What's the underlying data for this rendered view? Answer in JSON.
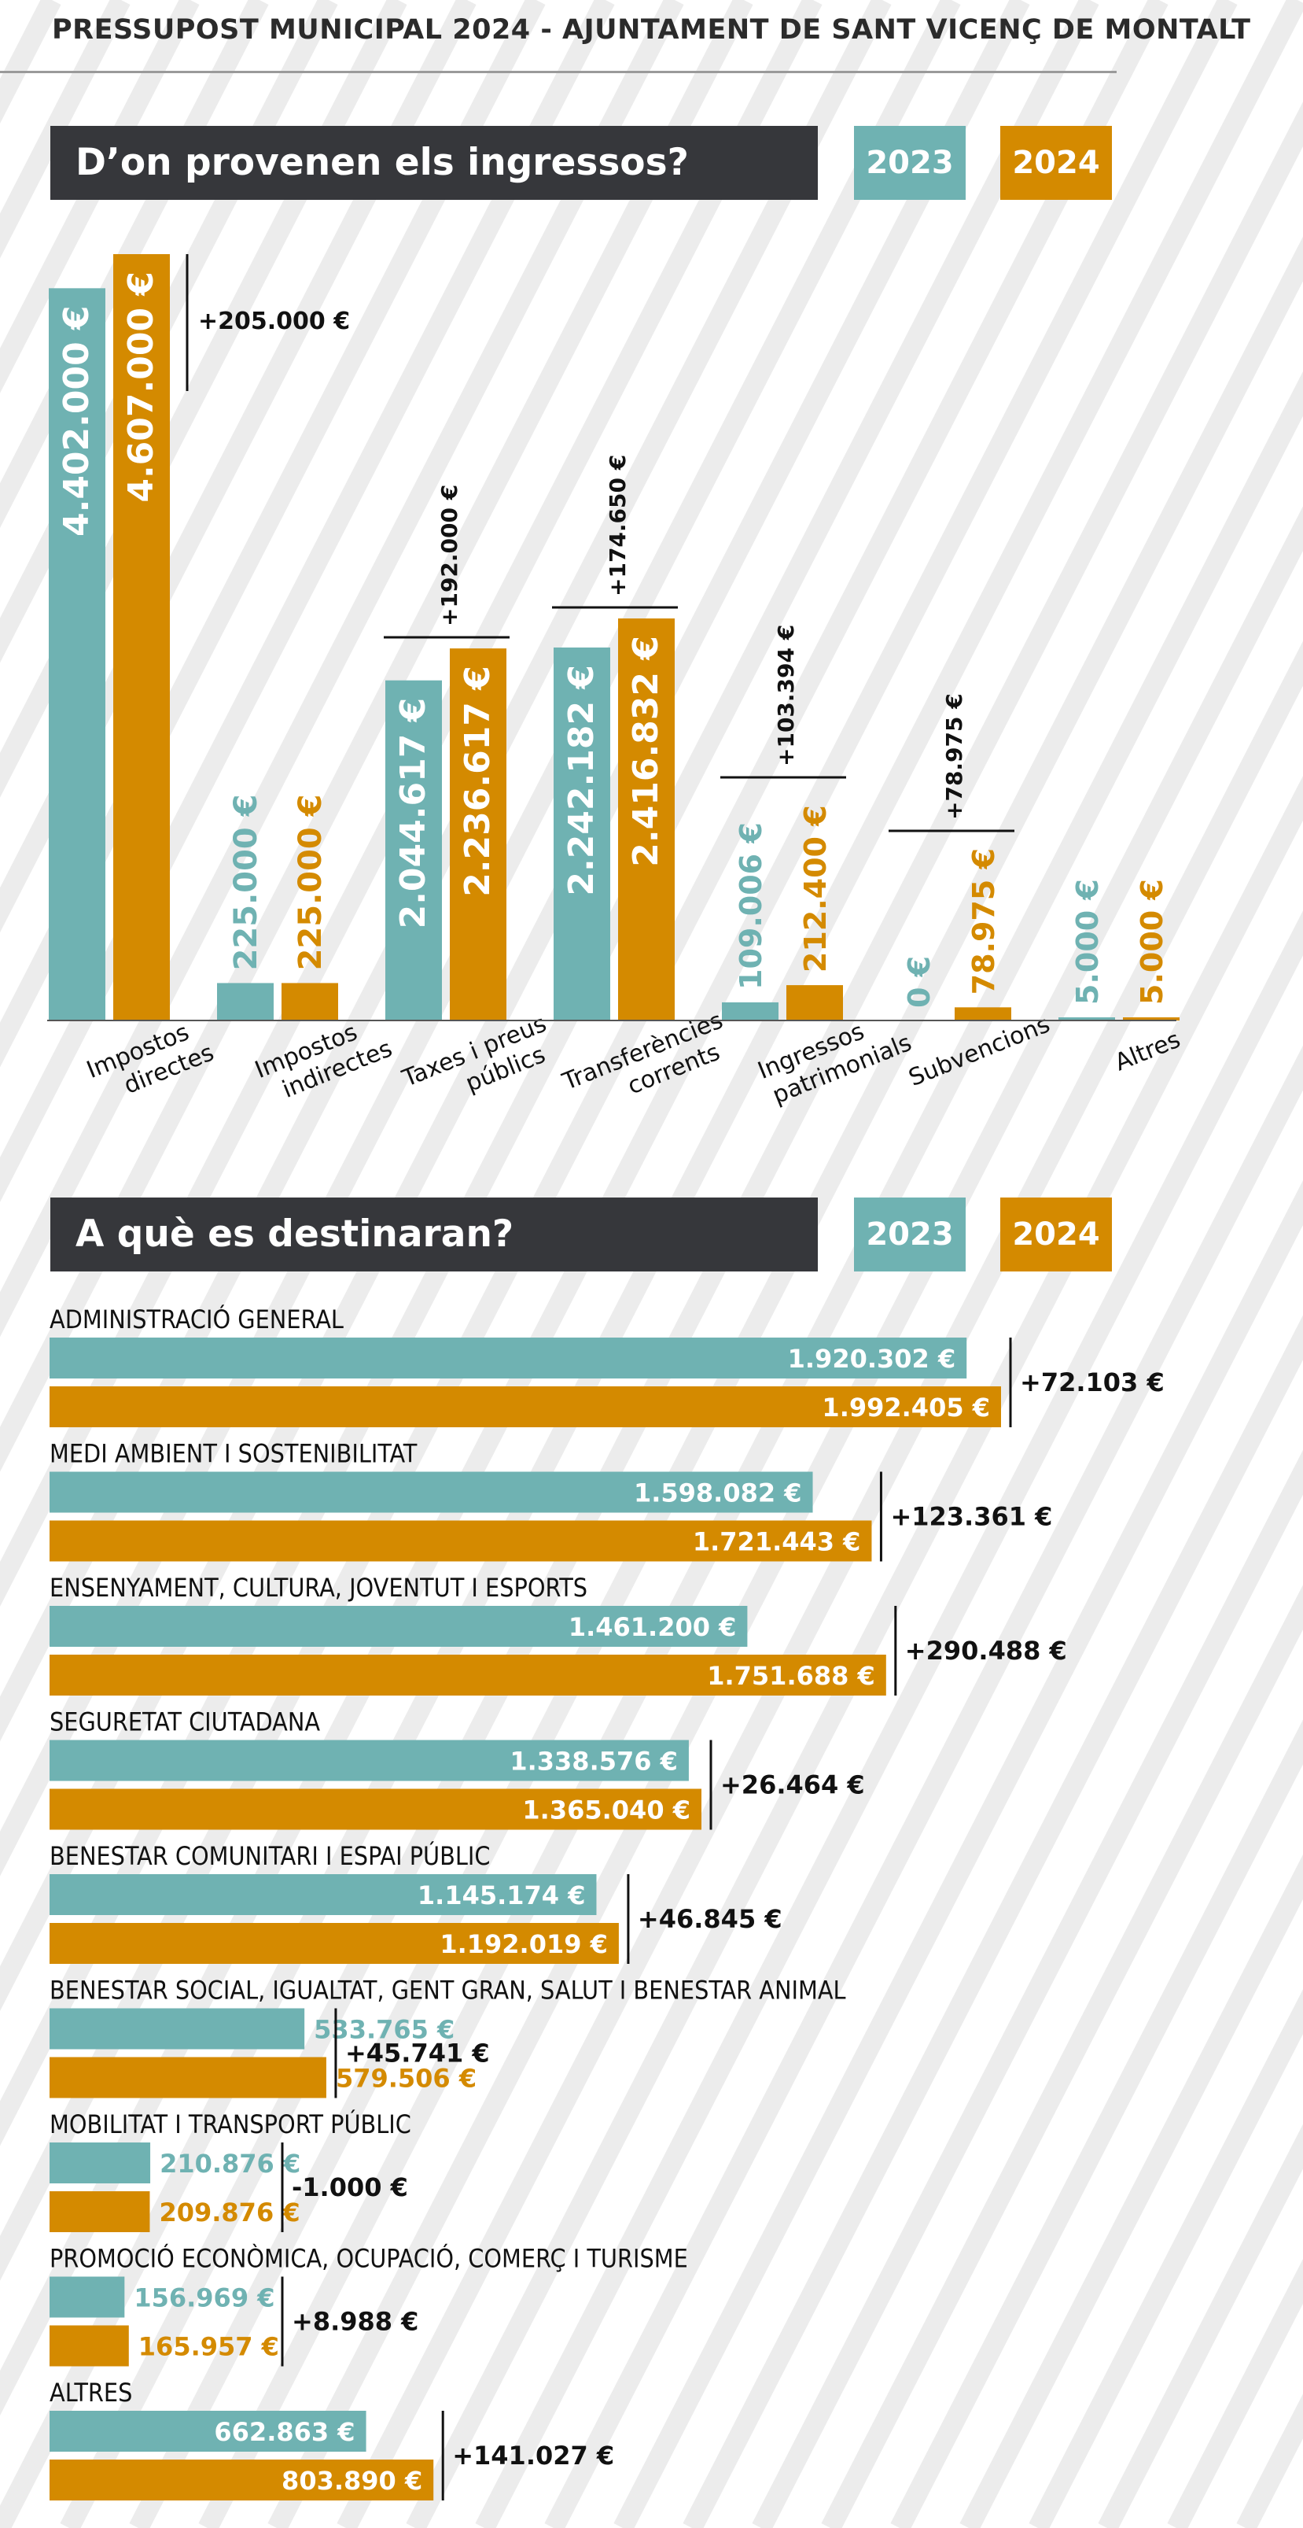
{
  "page_title": "PRESSUPOST MUNICIPAL 2024 - AJUNTAMENT DE SANT VICENÇ DE MONTALT",
  "colors": {
    "y2023": "#6fb2b2",
    "y2024": "#d48a00",
    "dark": "#36373b"
  },
  "income": {
    "heading": "D’on provenen els ingressos?",
    "legend_2023": "2023",
    "legend_2024": "2024"
  },
  "expenses": {
    "heading": "A què es destinaran?",
    "legend_2023": "2023",
    "legend_2024": "2024"
  },
  "chart_data": [
    {
      "type": "bar",
      "orientation": "vertical",
      "title": "D’on provenen els ingressos?",
      "categories": [
        [
          "Impostos",
          "directes"
        ],
        [
          "Impostos",
          "indirectes"
        ],
        [
          "Taxes i preus",
          "públics"
        ],
        [
          "Transferències",
          "corrents"
        ],
        [
          "Ingressos",
          "patrimonials"
        ],
        [
          "Subvencions"
        ],
        [
          "Altres"
        ]
      ],
      "series": [
        {
          "name": "2023",
          "values": [
            4402000,
            225000,
            2044617,
            2242182,
            109006,
            0,
            5000
          ],
          "labels": [
            "4.402.000 €",
            "225.000 €",
            "2.044.617 €",
            "2.242.182 €",
            "109.006 €",
            "0 €",
            "5.000 €"
          ]
        },
        {
          "name": "2024",
          "values": [
            4607000,
            225000,
            2236617,
            2416832,
            212400,
            78975,
            5000
          ],
          "labels": [
            "4.607.000 €",
            "225.000 €",
            "2.236.617 €",
            "2.416.832 €",
            "212.400 €",
            "78.975 €",
            "5.000 €"
          ]
        }
      ],
      "differences": [
        "+205.000 €",
        "",
        "+192.000 €",
        "+174.650 €",
        "+103.394 €",
        "+78.975 €",
        ""
      ]
    },
    {
      "type": "bar",
      "orientation": "horizontal",
      "title": "A què es destinaran?",
      "categories": [
        "ADMINISTRACIÓ GENERAL",
        "MEDI AMBIENT I SOSTENIBILITAT",
        "ENSENYAMENT, CULTURA, JOVENTUT I ESPORTS",
        "SEGURETAT CIUTADANA",
        "BENESTAR COMUNITARI I ESPAI PÚBLIC",
        "BENESTAR SOCIAL, IGUALTAT, GENT GRAN, SALUT I BENESTAR ANIMAL",
        "MOBILITAT I TRANSPORT PÚBLIC",
        "PROMOCIÓ ECONÒMICA, OCUPACIÓ, COMERÇ I TURISME",
        "ALTRES"
      ],
      "series": [
        {
          "name": "2023",
          "values": [
            1920302,
            1598082,
            1461200,
            1338576,
            1145174,
            533765,
            210876,
            156969,
            662863
          ],
          "labels": [
            "1.920.302 €",
            "1.598.082 €",
            "1.461.200 €",
            "1.338.576 €",
            "1.145.174 €",
            "533.765 €",
            "210.876 €",
            "156.969 €",
            "662.863 €"
          ]
        },
        {
          "name": "2024",
          "values": [
            1992405,
            1721443,
            1751688,
            1365040,
            1192019,
            579506,
            209876,
            165957,
            803890
          ],
          "labels": [
            "1.992.405 €",
            "1.721.443 €",
            "1.751.688 €",
            "1.365.040 €",
            "1.192.019 €",
            "579.506 €",
            "209.876 €",
            "165.957 €",
            "803.890 €"
          ]
        }
      ],
      "differences": [
        "+72.103 €",
        "+123.361 €",
        "+290.488 €",
        "+26.464 €",
        "+46.845 €",
        "+45.741 €",
        "-1.000 €",
        "+8.988 €",
        "+141.027 €"
      ]
    }
  ]
}
